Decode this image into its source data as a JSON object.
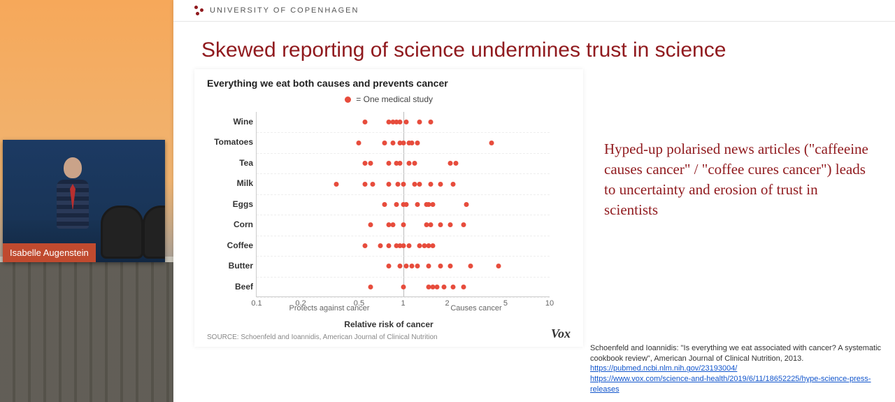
{
  "background": {
    "gradient_colors": [
      "#f6a85a",
      "#f0b471",
      "#a8a097",
      "#8a8275"
    ]
  },
  "speaker": {
    "name": "Isabelle Augenstein",
    "name_bg_color": "#c04a2f"
  },
  "slide": {
    "university": "UNIVERSITY OF COPENHAGEN",
    "title": "Skewed reporting of science undermines trust in science",
    "title_color": "#901a1e",
    "body_text": "Hyped-up polarised news articles (\"caffeeine causes cancer\" / \"coffee cures cancer\") leads to uncertainty and erosion of trust in scientists",
    "citation_text": "Schoenfeld and Ioannidis: \"Is everything we eat associated with cancer? A systematic cookbook review\", American Journal of Clinical Nutrition, 2013.",
    "citation_link1": "https://pubmed.ncbi.nlm.nih.gov/23193004/",
    "citation_link2": "https://www.vox.com/science-and-health/2019/6/11/18652225/hype-science-press-releases"
  },
  "chart": {
    "type": "scatter-strip",
    "title": "Everything we eat both causes and prevents cancer",
    "legend_label": "= One medical study",
    "dot_color": "#e74c3c",
    "grid_color": "#eeeeee",
    "axis_color": "#bbbbbb",
    "background_color": "#ffffff",
    "x_scale": "log",
    "xlim": [
      0.1,
      10
    ],
    "xticks": [
      0.1,
      0.2,
      0.5,
      1,
      2,
      5,
      10
    ],
    "xlabel": "Relative risk of cancer",
    "sublabel_left": "Protects against cancer",
    "sublabel_right": "Causes cancer",
    "categories": [
      "Wine",
      "Tomatoes",
      "Tea",
      "Milk",
      "Eggs",
      "Corn",
      "Coffee",
      "Butter",
      "Beef"
    ],
    "data": {
      "Wine": [
        0.55,
        0.8,
        0.85,
        0.9,
        0.95,
        1.05,
        1.3,
        1.55
      ],
      "Tomatoes": [
        0.5,
        0.75,
        0.85,
        0.95,
        1.0,
        1.1,
        1.15,
        1.25,
        4.0
      ],
      "Tea": [
        0.55,
        0.6,
        0.8,
        0.9,
        0.95,
        1.1,
        1.2,
        2.1,
        2.3
      ],
      "Milk": [
        0.35,
        0.55,
        0.62,
        0.8,
        0.92,
        1.0,
        1.2,
        1.3,
        1.55,
        1.8,
        2.2
      ],
      "Eggs": [
        0.75,
        0.9,
        1.0,
        1.05,
        1.25,
        1.45,
        1.5,
        1.6,
        2.7
      ],
      "Corn": [
        0.6,
        0.8,
        0.85,
        1.0,
        1.45,
        1.55,
        1.8,
        2.1,
        2.6
      ],
      "Coffee": [
        0.55,
        0.7,
        0.8,
        0.9,
        0.95,
        1.0,
        1.1,
        1.3,
        1.4,
        1.5,
        1.6
      ],
      "Butter": [
        0.8,
        0.95,
        1.05,
        1.15,
        1.25,
        1.5,
        1.8,
        2.1,
        2.9,
        4.5
      ],
      "Beef": [
        0.6,
        1.0,
        1.5,
        1.6,
        1.7,
        1.9,
        2.2,
        2.6
      ]
    },
    "source": "SOURCE: Schoenfeld and Ioannidis, American Journal of Clinical Nutrition",
    "brand": "Vox",
    "label_fontsize": 12,
    "title_fontsize": 14
  }
}
